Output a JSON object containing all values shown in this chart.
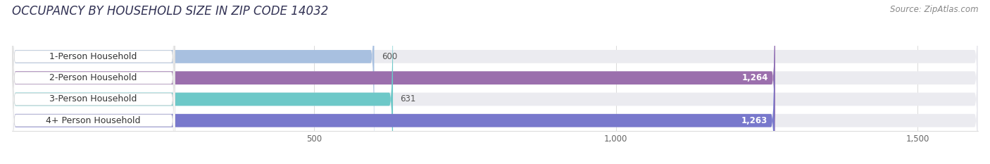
{
  "title": "OCCUPANCY BY HOUSEHOLD SIZE IN ZIP CODE 14032",
  "source": "Source: ZipAtlas.com",
  "categories": [
    "1-Person Household",
    "2-Person Household",
    "3-Person Household",
    "4+ Person Household"
  ],
  "values": [
    600,
    1264,
    631,
    1263
  ],
  "bar_colors": [
    "#a8c0e0",
    "#9b6fad",
    "#6dc8c8",
    "#7878cc"
  ],
  "bar_bg_color": "#ebebf0",
  "label_bg_color": "#ffffff",
  "value_label_colors": [
    "#555555",
    "#ffffff",
    "#555555",
    "#ffffff"
  ],
  "xlim_max": 1600,
  "xtick_values": [
    500,
    1000,
    1500
  ],
  "xtick_labels": [
    "500",
    "1,000",
    "1,500"
  ],
  "title_fontsize": 12,
  "source_fontsize": 8.5,
  "label_fontsize": 9,
  "value_fontsize": 8.5,
  "tick_fontsize": 8.5
}
